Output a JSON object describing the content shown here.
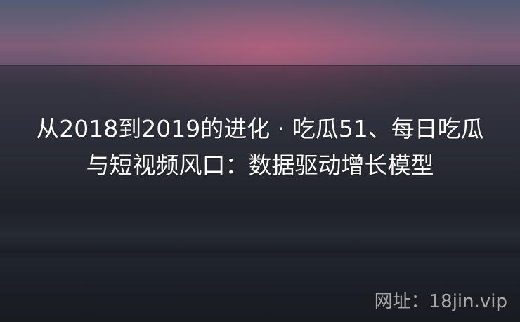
{
  "article": {
    "title": "从2018到2019的进化 · 吃瓜51、每日吃瓜与短视频风口：数据驱动增长模型"
  },
  "watermark": {
    "text": "网址：18jin.vip"
  },
  "colors": {
    "title_text": "#ffffff",
    "watermark_text": "#c8c8cc",
    "sky_glow": "#d6627f"
  }
}
